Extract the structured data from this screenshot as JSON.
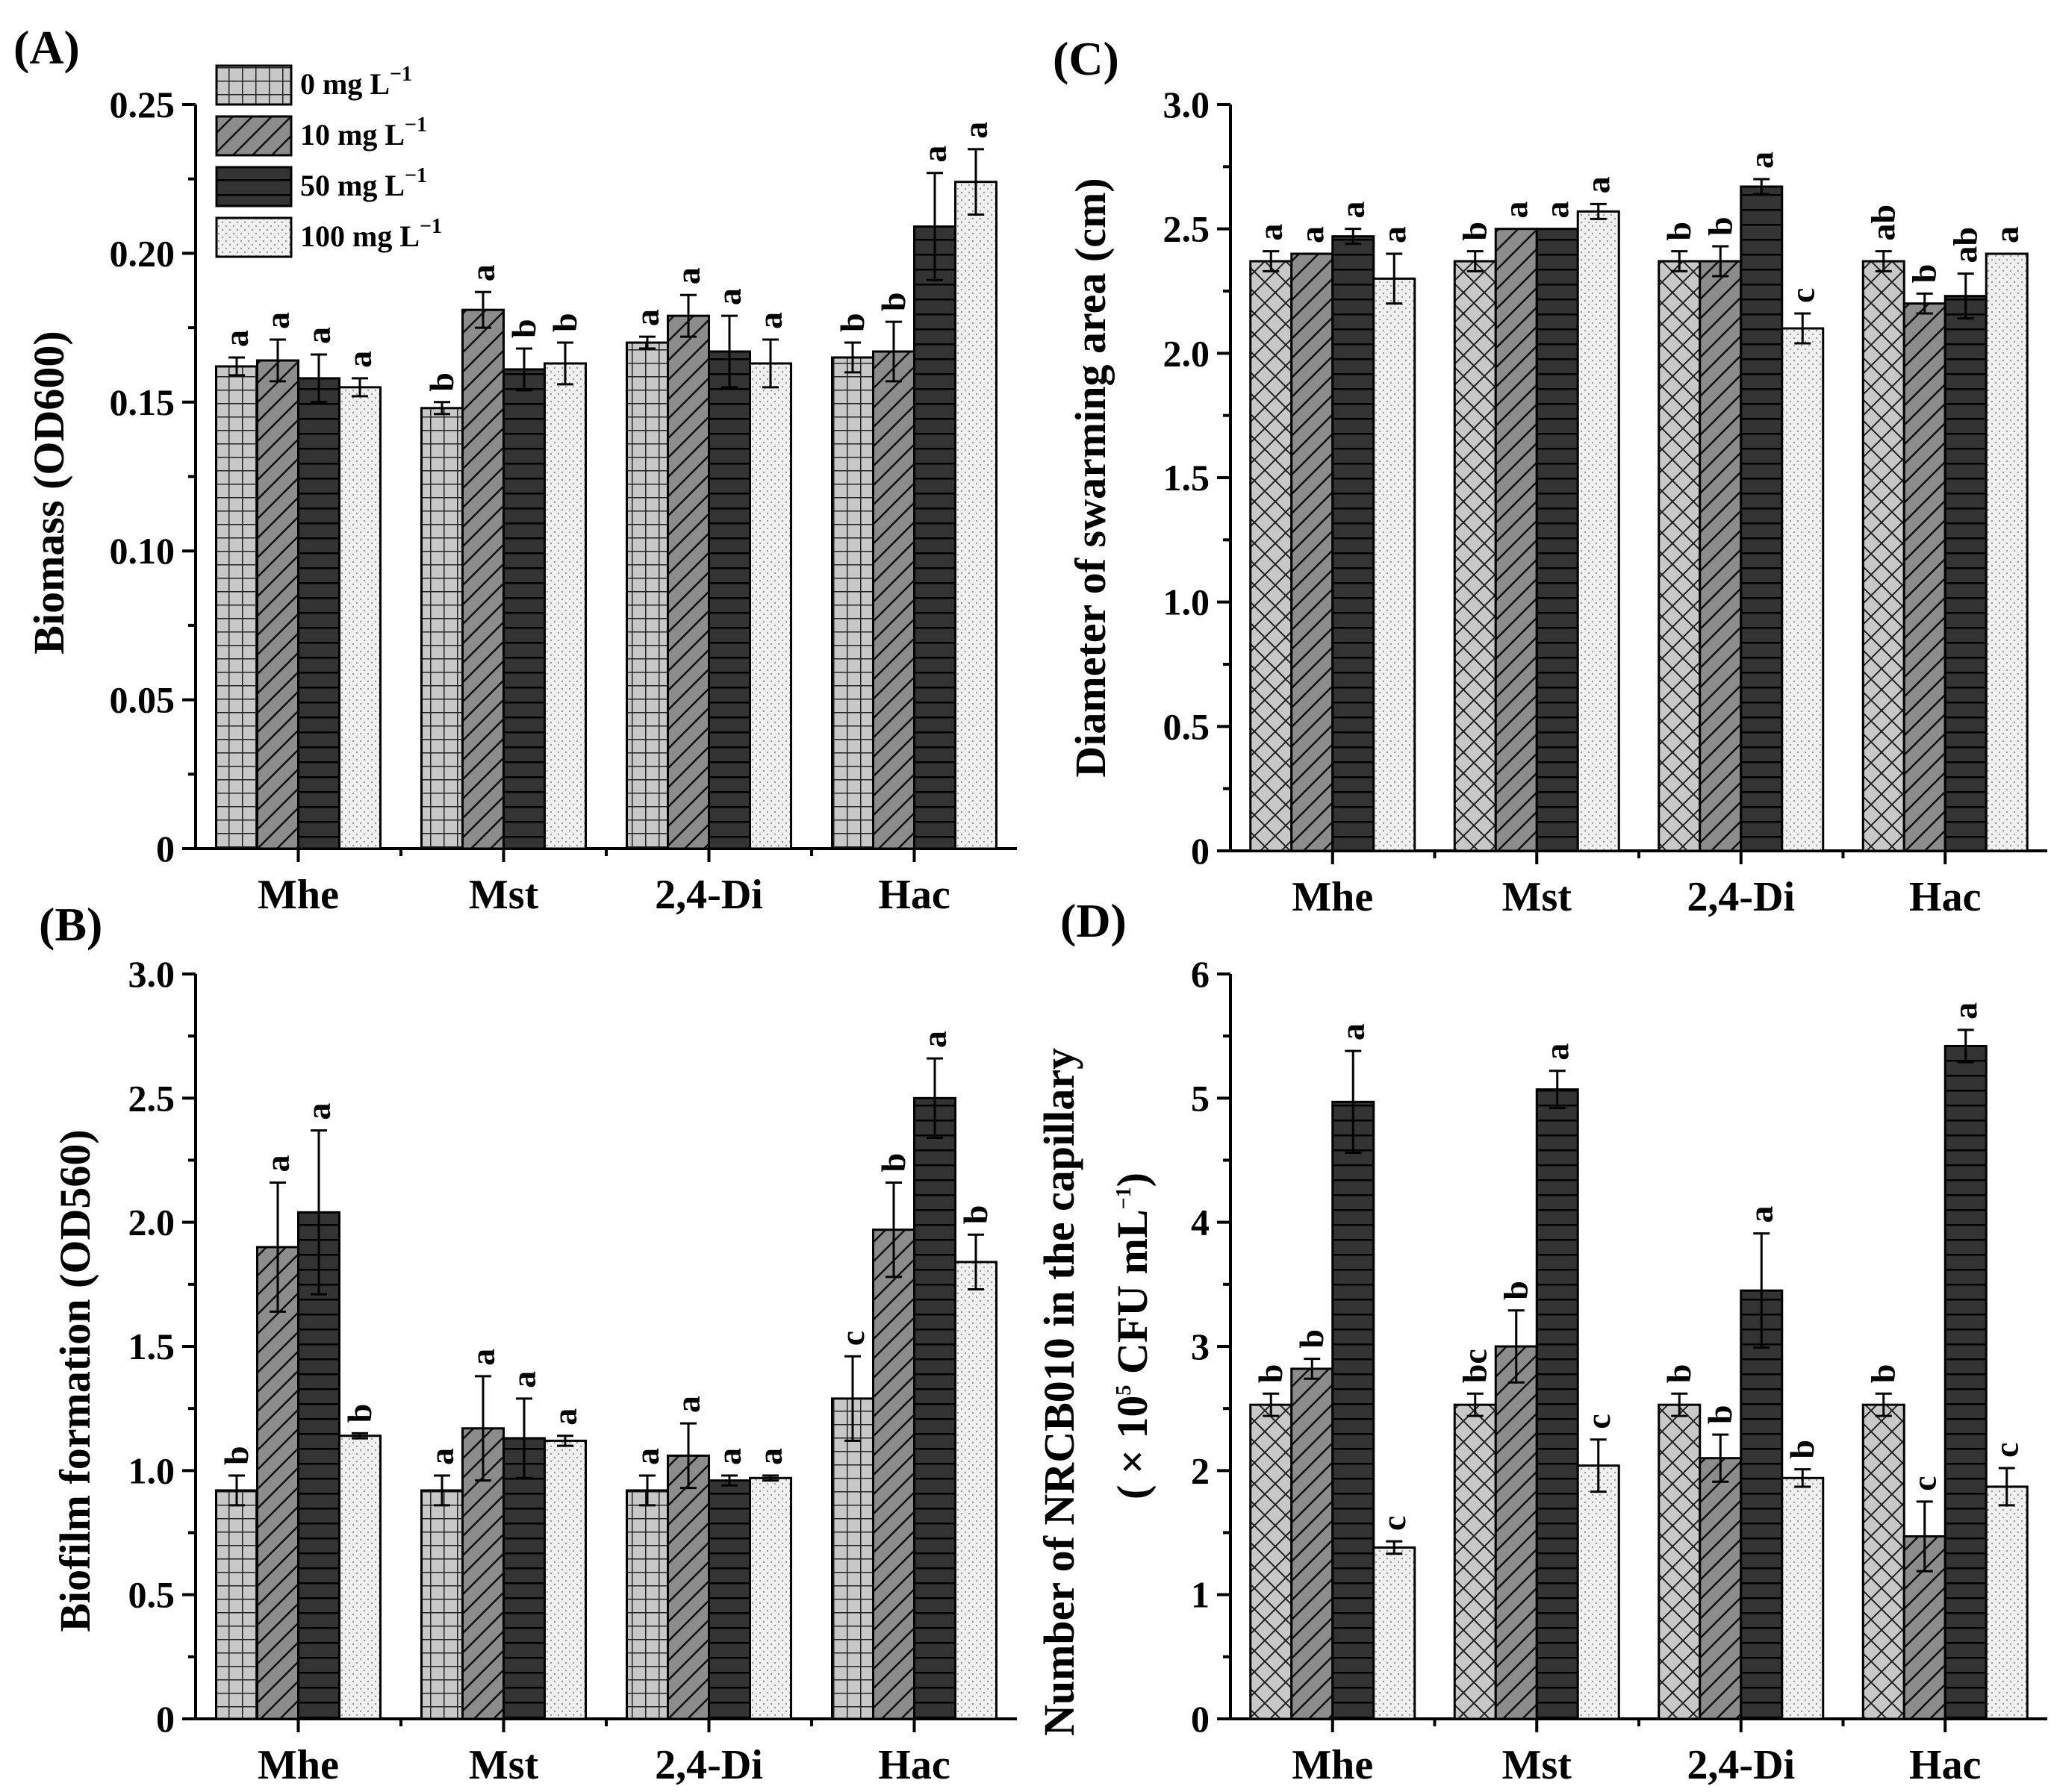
{
  "colors": {
    "c0": "#c8c8c8",
    "c10": "#8c8c8c",
    "c50": "#333333",
    "c100": "#f0f0f0"
  },
  "legend": {
    "items": [
      {
        "label": "0 mg L",
        "sup": "−1"
      },
      {
        "label": "10 mg L",
        "sup": "−1"
      },
      {
        "label": "50 mg L",
        "sup": "−1"
      },
      {
        "label": "100 mg L",
        "sup": "−1"
      }
    ]
  },
  "chart_data": [
    {
      "panel": "(A)",
      "type": "bar",
      "ylabel": "Biomass (OD600)",
      "ylim": [
        0,
        0.25
      ],
      "yticks": [
        "0",
        "0.05",
        "0.10",
        "0.15",
        "0.20",
        "0.25"
      ],
      "categories": [
        "Mhe",
        "Mst",
        "2,4-Di",
        "Hac"
      ],
      "series": [
        {
          "name": "0 mg L−1",
          "values": [
            0.162,
            0.148,
            0.17,
            0.165
          ],
          "errors": [
            0.003,
            0.002,
            0.002,
            0.005
          ],
          "letters": [
            "a",
            "b",
            "a",
            "b"
          ]
        },
        {
          "name": "10 mg L−1",
          "values": [
            0.164,
            0.181,
            0.179,
            0.167
          ],
          "errors": [
            0.007,
            0.006,
            0.007,
            0.01
          ],
          "letters": [
            "a",
            "a",
            "a",
            "b"
          ]
        },
        {
          "name": "50 mg L−1",
          "values": [
            0.158,
            0.161,
            0.167,
            0.209
          ],
          "errors": [
            0.008,
            0.007,
            0.012,
            0.018
          ],
          "letters": [
            "a",
            "b",
            "a",
            "a"
          ]
        },
        {
          "name": "100 mg L−1",
          "values": [
            0.155,
            0.163,
            0.163,
            0.224
          ],
          "errors": [
            0.003,
            0.007,
            0.008,
            0.011
          ],
          "letters": [
            "a",
            "b",
            "a",
            "a"
          ]
        }
      ]
    },
    {
      "panel": "(B)",
      "type": "bar",
      "ylabel": "Biofilm formation (OD560)",
      "ylim": [
        0,
        3.0
      ],
      "yticks": [
        "0",
        "0.5",
        "1.0",
        "1.5",
        "2.0",
        "2.5",
        "3.0"
      ],
      "categories": [
        "Mhe",
        "Mst",
        "2,4-Di",
        "Hac"
      ],
      "series": [
        {
          "name": "0 mg L−1",
          "values": [
            0.92,
            0.92,
            0.92,
            1.29
          ],
          "errors": [
            0.06,
            0.06,
            0.06,
            0.17
          ],
          "letters": [
            "b",
            "a",
            "a",
            "c"
          ]
        },
        {
          "name": "10 mg L−1",
          "values": [
            1.9,
            1.17,
            1.06,
            1.97
          ],
          "errors": [
            0.26,
            0.21,
            0.13,
            0.19
          ],
          "letters": [
            "a",
            "a",
            "a",
            "b"
          ]
        },
        {
          "name": "50 mg L−1",
          "values": [
            2.04,
            1.13,
            0.96,
            2.5
          ],
          "errors": [
            0.33,
            0.16,
            0.02,
            0.16
          ],
          "letters": [
            "a",
            "a",
            "a",
            "a"
          ]
        },
        {
          "name": "100 mg L−1",
          "values": [
            1.14,
            1.12,
            0.97,
            1.84
          ],
          "errors": [
            0.01,
            0.02,
            0.01,
            0.11
          ],
          "letters": [
            "b",
            "a",
            "a",
            "b"
          ]
        }
      ]
    },
    {
      "panel": "(C)",
      "type": "bar",
      "ylabel": "Diameter of swarming area (cm)",
      "ylim": [
        0,
        3.0
      ],
      "yticks": [
        "0",
        "0.5",
        "1.0",
        "1.5",
        "2.0",
        "2.5",
        "3.0"
      ],
      "categories": [
        "Mhe",
        "Mst",
        "2,4-Di",
        "Hac"
      ],
      "series": [
        {
          "name": "0 mg L−1",
          "values": [
            2.37,
            2.37,
            2.37,
            2.37
          ],
          "errors": [
            0.04,
            0.04,
            0.04,
            0.04
          ],
          "letters": [
            "a",
            "b",
            "b",
            "ab"
          ]
        },
        {
          "name": "10 mg L−1",
          "values": [
            2.4,
            2.5,
            2.37,
            2.2
          ],
          "errors": [
            0.0,
            0.0,
            0.06,
            0.04
          ],
          "letters": [
            "a",
            "a",
            "b",
            "b"
          ]
        },
        {
          "name": "50 mg L−1",
          "values": [
            2.47,
            2.5,
            2.67,
            2.23
          ],
          "errors": [
            0.03,
            0.0,
            0.03,
            0.09
          ],
          "letters": [
            "a",
            "a",
            "a",
            "ab"
          ]
        },
        {
          "name": "100 mg L−1",
          "values": [
            2.3,
            2.57,
            2.1,
            2.4
          ],
          "errors": [
            0.1,
            0.03,
            0.06,
            0.0
          ],
          "letters": [
            "a",
            "a",
            "c",
            "a"
          ]
        }
      ]
    },
    {
      "panel": "(D)",
      "type": "bar",
      "ylabel_line1": "Number of NRCB010 in the capillary",
      "ylabel_line2_pre": "( × 10",
      "ylabel_line2_sup": "5",
      "ylabel_line2_post": " CFU mL",
      "ylabel_line2_sup2": "−1",
      "ylabel_line2_end": ")",
      "ylim": [
        0,
        6
      ],
      "yticks": [
        "0",
        "1",
        "2",
        "3",
        "4",
        "5",
        "6"
      ],
      "categories": [
        "Mhe",
        "Mst",
        "2,4-Di",
        "Hac"
      ],
      "series": [
        {
          "name": "0 mg L−1",
          "values": [
            2.53,
            2.53,
            2.53,
            2.53
          ],
          "errors": [
            0.09,
            0.09,
            0.09,
            0.09
          ],
          "letters": [
            "b",
            "bc",
            "b",
            "b"
          ]
        },
        {
          "name": "10 mg L−1",
          "values": [
            2.82,
            3.0,
            2.1,
            1.47
          ],
          "errors": [
            0.08,
            0.29,
            0.19,
            0.28
          ],
          "letters": [
            "b",
            "b",
            "b",
            "c"
          ]
        },
        {
          "name": "50 mg L−1",
          "values": [
            4.97,
            5.07,
            3.45,
            5.42
          ],
          "errors": [
            0.41,
            0.15,
            0.46,
            0.13
          ],
          "letters": [
            "a",
            "a",
            "a",
            "a"
          ]
        },
        {
          "name": "100 mg L−1",
          "values": [
            1.38,
            2.04,
            1.94,
            1.87
          ],
          "errors": [
            0.05,
            0.21,
            0.07,
            0.15
          ],
          "letters": [
            "c",
            "c",
            "b",
            "c"
          ]
        }
      ]
    }
  ]
}
